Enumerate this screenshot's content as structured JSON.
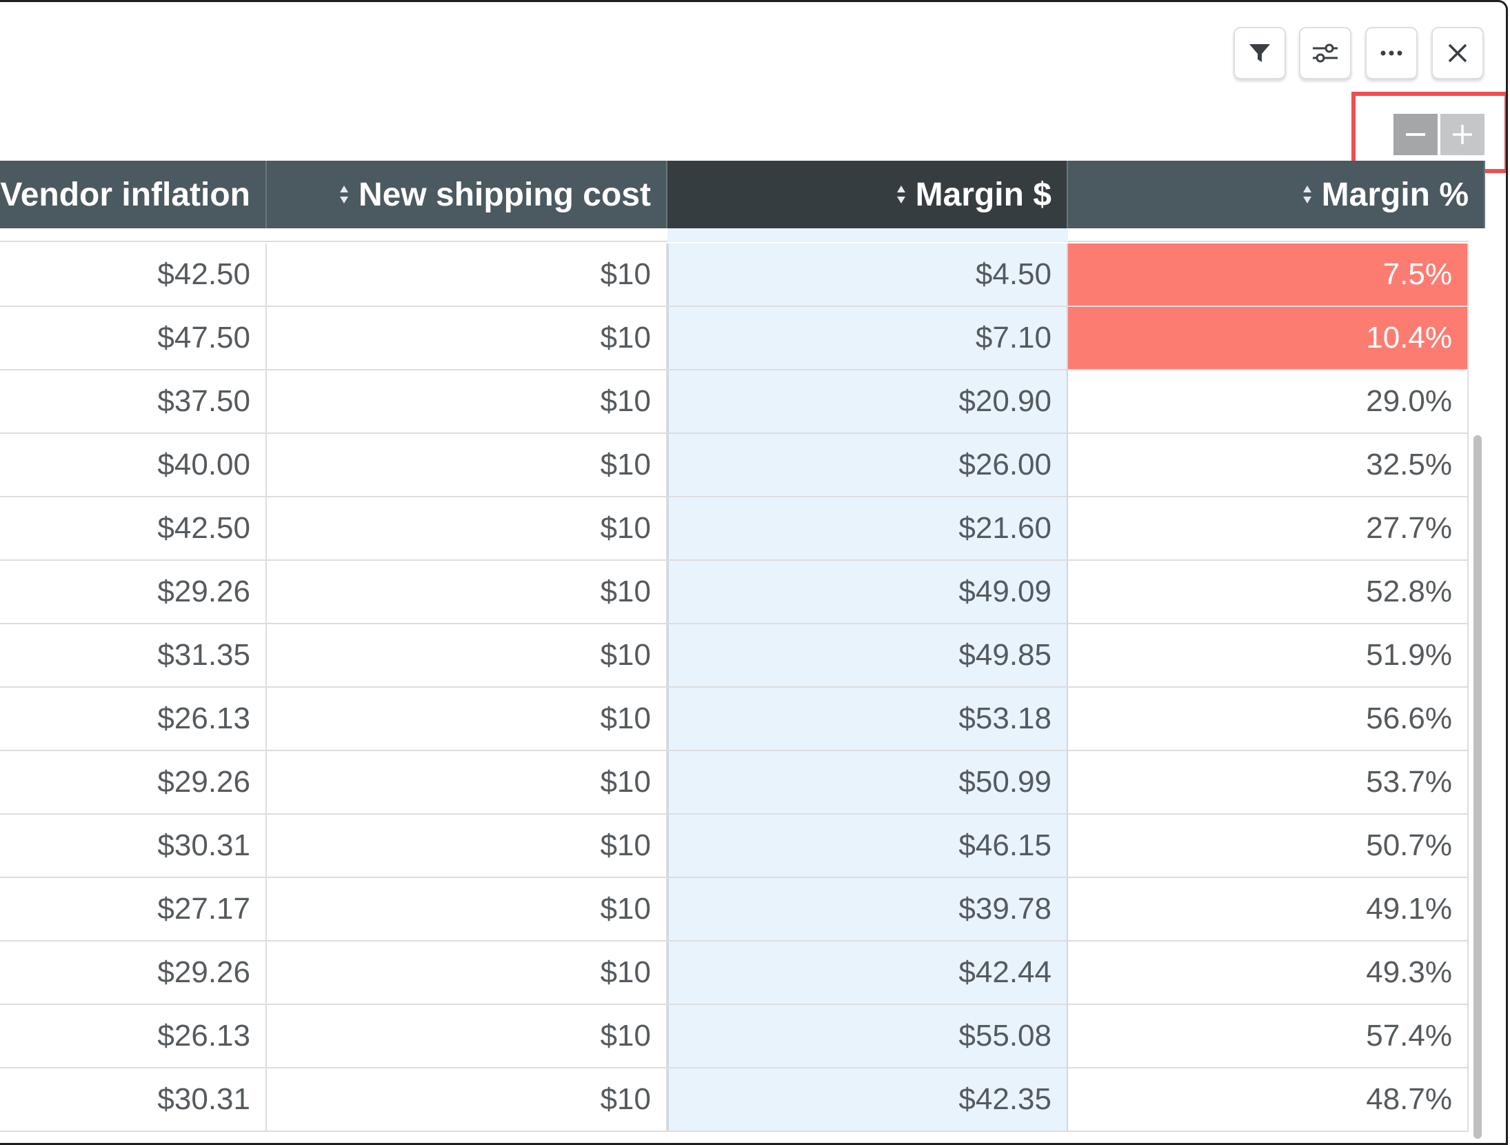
{
  "toolbar": {
    "icons": [
      "filter-icon",
      "sliders-icon",
      "more-icon",
      "close-icon"
    ]
  },
  "zoom": {
    "minus_symbol": "−",
    "plus_symbol": "+"
  },
  "table": {
    "headers": [
      "Vendor inflation",
      "New shipping cost",
      "Margin $",
      "Margin %"
    ],
    "rows": [
      {
        "vendor_inflation": "$42.50",
        "shipping": "$10",
        "margin_d": "$4.50",
        "margin_p": "7.5%",
        "alert": true
      },
      {
        "vendor_inflation": "$47.50",
        "shipping": "$10",
        "margin_d": "$7.10",
        "margin_p": "10.4%",
        "alert": true
      },
      {
        "vendor_inflation": "$37.50",
        "shipping": "$10",
        "margin_d": "$20.90",
        "margin_p": "29.0%",
        "alert": false
      },
      {
        "vendor_inflation": "$40.00",
        "shipping": "$10",
        "margin_d": "$26.00",
        "margin_p": "32.5%",
        "alert": false
      },
      {
        "vendor_inflation": "$42.50",
        "shipping": "$10",
        "margin_d": "$21.60",
        "margin_p": "27.7%",
        "alert": false
      },
      {
        "vendor_inflation": "$29.26",
        "shipping": "$10",
        "margin_d": "$49.09",
        "margin_p": "52.8%",
        "alert": false
      },
      {
        "vendor_inflation": "$31.35",
        "shipping": "$10",
        "margin_d": "$49.85",
        "margin_p": "51.9%",
        "alert": false
      },
      {
        "vendor_inflation": "$26.13",
        "shipping": "$10",
        "margin_d": "$53.18",
        "margin_p": "56.6%",
        "alert": false
      },
      {
        "vendor_inflation": "$29.26",
        "shipping": "$10",
        "margin_d": "$50.99",
        "margin_p": "53.7%",
        "alert": false
      },
      {
        "vendor_inflation": "$30.31",
        "shipping": "$10",
        "margin_d": "$46.15",
        "margin_p": "50.7%",
        "alert": false
      },
      {
        "vendor_inflation": "$27.17",
        "shipping": "$10",
        "margin_d": "$39.78",
        "margin_p": "49.1%",
        "alert": false
      },
      {
        "vendor_inflation": "$29.26",
        "shipping": "$10",
        "margin_d": "$42.44",
        "margin_p": "49.3%",
        "alert": false
      },
      {
        "vendor_inflation": "$26.13",
        "shipping": "$10",
        "margin_d": "$55.08",
        "margin_p": "57.4%",
        "alert": false
      },
      {
        "vendor_inflation": "$30.31",
        "shipping": "$10",
        "margin_d": "$42.35",
        "margin_p": "48.7%",
        "alert": false
      }
    ]
  },
  "colors": {
    "header_bg": "#4b5960",
    "header_active_bg": "#363d40",
    "margin_column_bg": "#e8f3fc",
    "alert_bg": "#fd7c72",
    "highlight_border": "#f04e4e"
  }
}
